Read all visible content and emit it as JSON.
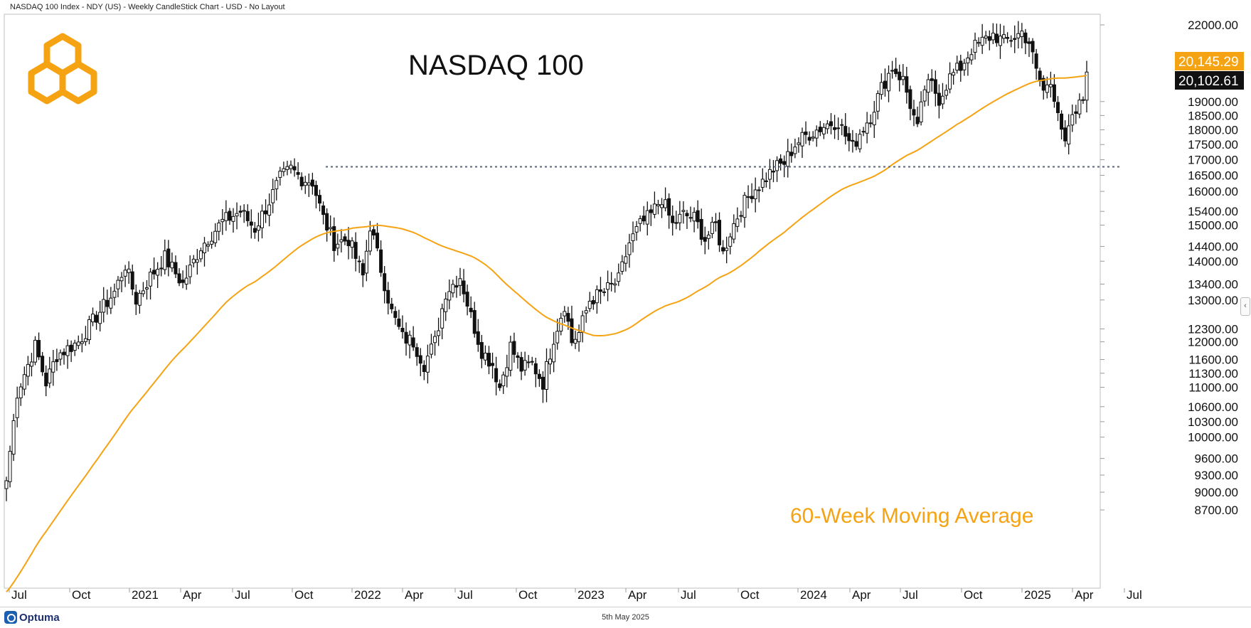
{
  "header": {
    "text": "NASDAQ 100 Index - NDY (US) - Weekly CandleStick Chart - USD - No Layout"
  },
  "footer": {
    "date": "5th May 2025",
    "brand": "Optuma"
  },
  "colors": {
    "ma": "#f5a312",
    "logo": "#f5a312",
    "candle": "#111111",
    "bg": "#ffffff",
    "resistance": "#5a6577"
  },
  "icons": {
    "logo": "hexagon-logo-icon",
    "brand": "optuma-logo-icon",
    "collapse": "chevron-left-icon"
  },
  "chart_data": {
    "type": "candlestick",
    "title": "NASDAQ 100",
    "scale": "log",
    "y_ticks": [
      8700,
      9000,
      9300,
      9600,
      10000,
      10300,
      10600,
      11000,
      11300,
      11600,
      12000,
      12300,
      13000,
      13400,
      14000,
      14400,
      15000,
      15400,
      16000,
      16500,
      17000,
      17500,
      18000,
      18500,
      19000,
      22000
    ],
    "y_tick_labels": [
      "8700.00",
      "9000.00",
      "9300.00",
      "9600.00",
      "10000.00",
      "10300.00",
      "10600.00",
      "11000.00",
      "11300.00",
      "11600.00",
      "12000.00",
      "12300.00",
      "13000.00",
      "13400.00",
      "14000.00",
      "14400.00",
      "15000.00",
      "15400.00",
      "16000.00",
      "16500.00",
      "17000.00",
      "17500.00",
      "18000.00",
      "18500.00",
      "19000.00",
      "22000.00"
    ],
    "x_labels": [
      "Jul",
      "Oct",
      "2021",
      "Apr",
      "Jul",
      "Oct",
      "2022",
      "Apr",
      "Jul",
      "Oct",
      "2023",
      "Apr",
      "Jul",
      "Oct",
      "2024",
      "Apr",
      "Jul",
      "Oct",
      "2025",
      "Apr",
      "Jul"
    ],
    "last_price": 20102.61,
    "last_price_label": "20,102.61",
    "ma_label_value": "20,145.29",
    "ma_annotation": "60-Week Moving Average",
    "resistance_level": 16770,
    "anchors": [
      [
        0,
        9200
      ],
      [
        3,
        10900
      ],
      [
        8,
        11900
      ],
      [
        11,
        11100
      ],
      [
        14,
        11700
      ],
      [
        20,
        12000
      ],
      [
        25,
        12600
      ],
      [
        30,
        13200
      ],
      [
        33,
        13900
      ],
      [
        36,
        13000
      ],
      [
        40,
        13600
      ],
      [
        44,
        14100
      ],
      [
        49,
        13400
      ],
      [
        54,
        14400
      ],
      [
        60,
        15100
      ],
      [
        65,
        15400
      ],
      [
        69,
        14900
      ],
      [
        73,
        15700
      ],
      [
        76,
        16400
      ],
      [
        79,
        16700
      ],
      [
        82,
        16400
      ],
      [
        85,
        16300
      ],
      [
        88,
        15200
      ],
      [
        91,
        14500
      ],
      [
        95,
        14600
      ],
      [
        99,
        13600
      ],
      [
        101,
        15000
      ],
      [
        104,
        13800
      ],
      [
        107,
        12700
      ],
      [
        110,
        12100
      ],
      [
        113,
        12000
      ],
      [
        116,
        11500
      ],
      [
        119,
        12000
      ],
      [
        122,
        13200
      ],
      [
        126,
        13600
      ],
      [
        129,
        12600
      ],
      [
        132,
        11800
      ],
      [
        135,
        11500
      ],
      [
        137,
        11000
      ],
      [
        140,
        11900
      ],
      [
        143,
        11400
      ],
      [
        146,
        11500
      ],
      [
        149,
        11100
      ],
      [
        152,
        12100
      ],
      [
        155,
        12900
      ],
      [
        157,
        12000
      ],
      [
        159,
        12200
      ],
      [
        162,
        13000
      ],
      [
        166,
        13200
      ],
      [
        170,
        13500
      ],
      [
        173,
        14500
      ],
      [
        176,
        15000
      ],
      [
        179,
        15300
      ],
      [
        182,
        15800
      ],
      [
        185,
        15000
      ],
      [
        188,
        15300
      ],
      [
        191,
        15200
      ],
      [
        194,
        14600
      ],
      [
        197,
        15000
      ],
      [
        199,
        14200
      ],
      [
        201,
        14800
      ],
      [
        204,
        15500
      ],
      [
        207,
        16000
      ],
      [
        210,
        16300
      ],
      [
        213,
        16700
      ],
      [
        216,
        16900
      ],
      [
        219,
        17500
      ],
      [
        222,
        17800
      ],
      [
        225,
        18000
      ],
      [
        228,
        18200
      ],
      [
        231,
        18300
      ],
      [
        233,
        17800
      ],
      [
        235,
        17400
      ],
      [
        237,
        17900
      ],
      [
        240,
        18500
      ],
      [
        243,
        19500
      ],
      [
        246,
        20300
      ],
      [
        249,
        19800
      ],
      [
        251,
        18900
      ],
      [
        253,
        18000
      ],
      [
        255,
        19500
      ],
      [
        257,
        19600
      ],
      [
        259,
        19100
      ],
      [
        262,
        19900
      ],
      [
        265,
        20300
      ],
      [
        268,
        21000
      ],
      [
        271,
        21300
      ],
      [
        274,
        21600
      ],
      [
        277,
        21300
      ],
      [
        280,
        21500
      ],
      [
        282,
        21700
      ],
      [
        284,
        21300
      ],
      [
        286,
        20100
      ],
      [
        288,
        19400
      ],
      [
        290,
        19700
      ],
      [
        292,
        18800
      ],
      [
        294,
        17400
      ],
      [
        295,
        18000
      ],
      [
        297,
        18600
      ],
      [
        299,
        19100
      ],
      [
        300,
        20102.61
      ]
    ]
  }
}
